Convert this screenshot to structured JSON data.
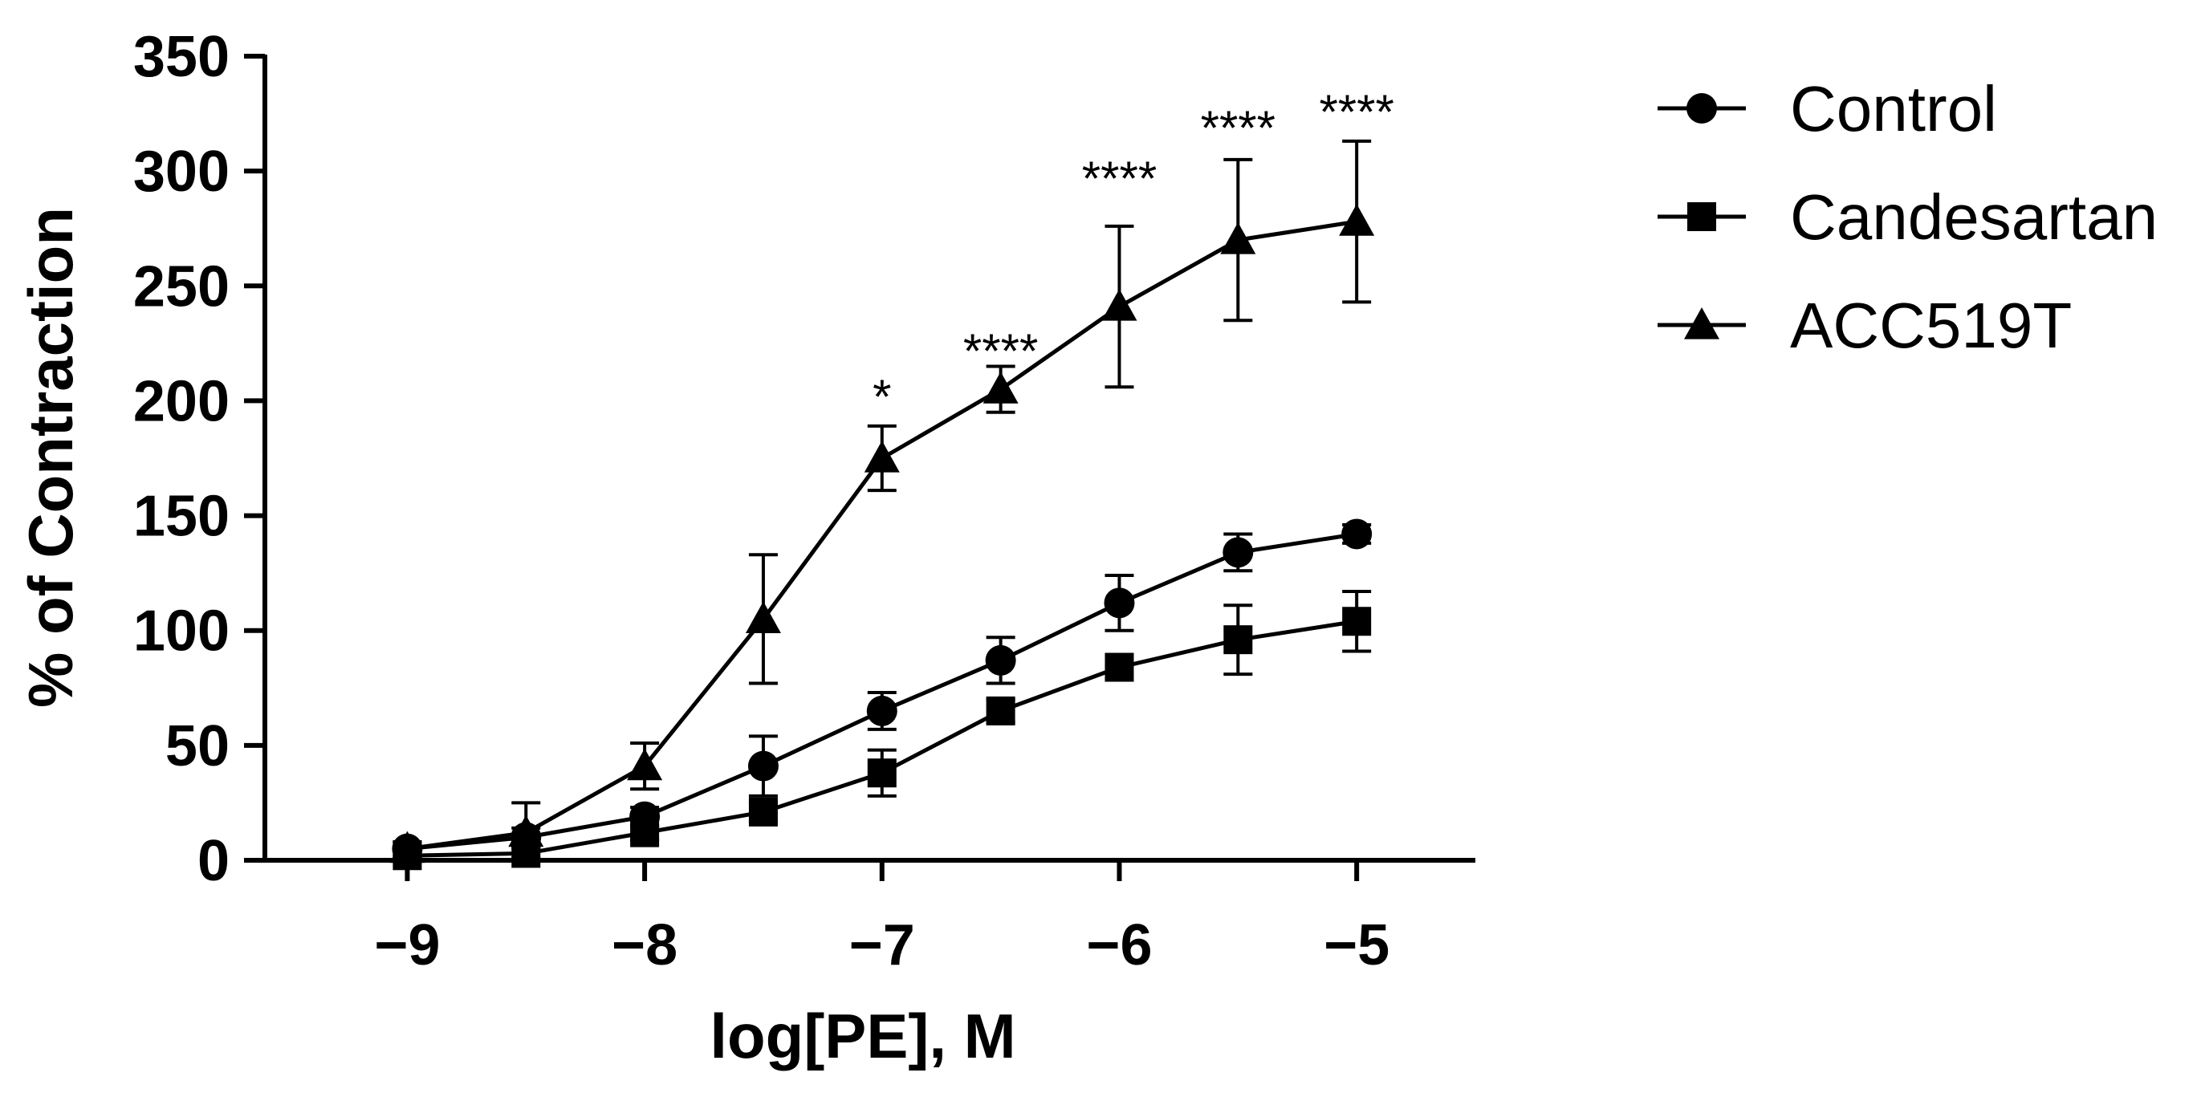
{
  "chart_data": {
    "type": "line",
    "title": "",
    "xlabel": "log[PE], M",
    "ylabel": "% of Contraction",
    "x": [
      -9,
      -8.5,
      -8,
      -7.5,
      -7,
      -6.5,
      -6,
      -5.5,
      -5
    ],
    "xlim": [
      -9.6,
      -4.5
    ],
    "ylim": [
      0,
      350
    ],
    "x_ticks": [
      -9,
      -8,
      -7,
      -6,
      -5
    ],
    "x_tick_labels": [
      "−9",
      "−8",
      "−7",
      "−6",
      "−5"
    ],
    "y_ticks": [
      0,
      50,
      100,
      150,
      200,
      250,
      300,
      350
    ],
    "y_tick_labels": [
      "0",
      "50",
      "100",
      "150",
      "200",
      "250",
      "300",
      "350"
    ],
    "grid": false,
    "legend_position": "top-right",
    "series": [
      {
        "name": "Control",
        "marker": "circle",
        "values": [
          5,
          10,
          19,
          41,
          65,
          87,
          112,
          134,
          142
        ],
        "errors": [
          3,
          4,
          4,
          13,
          8,
          10,
          12,
          8,
          4
        ]
      },
      {
        "name": "Candesartan",
        "marker": "square",
        "values": [
          2,
          3,
          12,
          21,
          38,
          65,
          84,
          96,
          104
        ],
        "errors": [
          2,
          2,
          3,
          4,
          10,
          5,
          5,
          15,
          13
        ]
      },
      {
        "name": "ACC519T",
        "marker": "triangle",
        "values": [
          5,
          12,
          41,
          105,
          175,
          205,
          241,
          270,
          278
        ],
        "errors": [
          3,
          13,
          10,
          28,
          14,
          10,
          35,
          35,
          35
        ]
      }
    ],
    "annotations": [
      {
        "x": -7,
        "y": 205,
        "text": "*"
      },
      {
        "x": -6.5,
        "y": 225,
        "text": "****"
      },
      {
        "x": -6,
        "y": 300,
        "text": "****"
      },
      {
        "x": -5.5,
        "y": 322,
        "text": "****"
      },
      {
        "x": -5,
        "y": 329,
        "text": "****"
      }
    ]
  }
}
